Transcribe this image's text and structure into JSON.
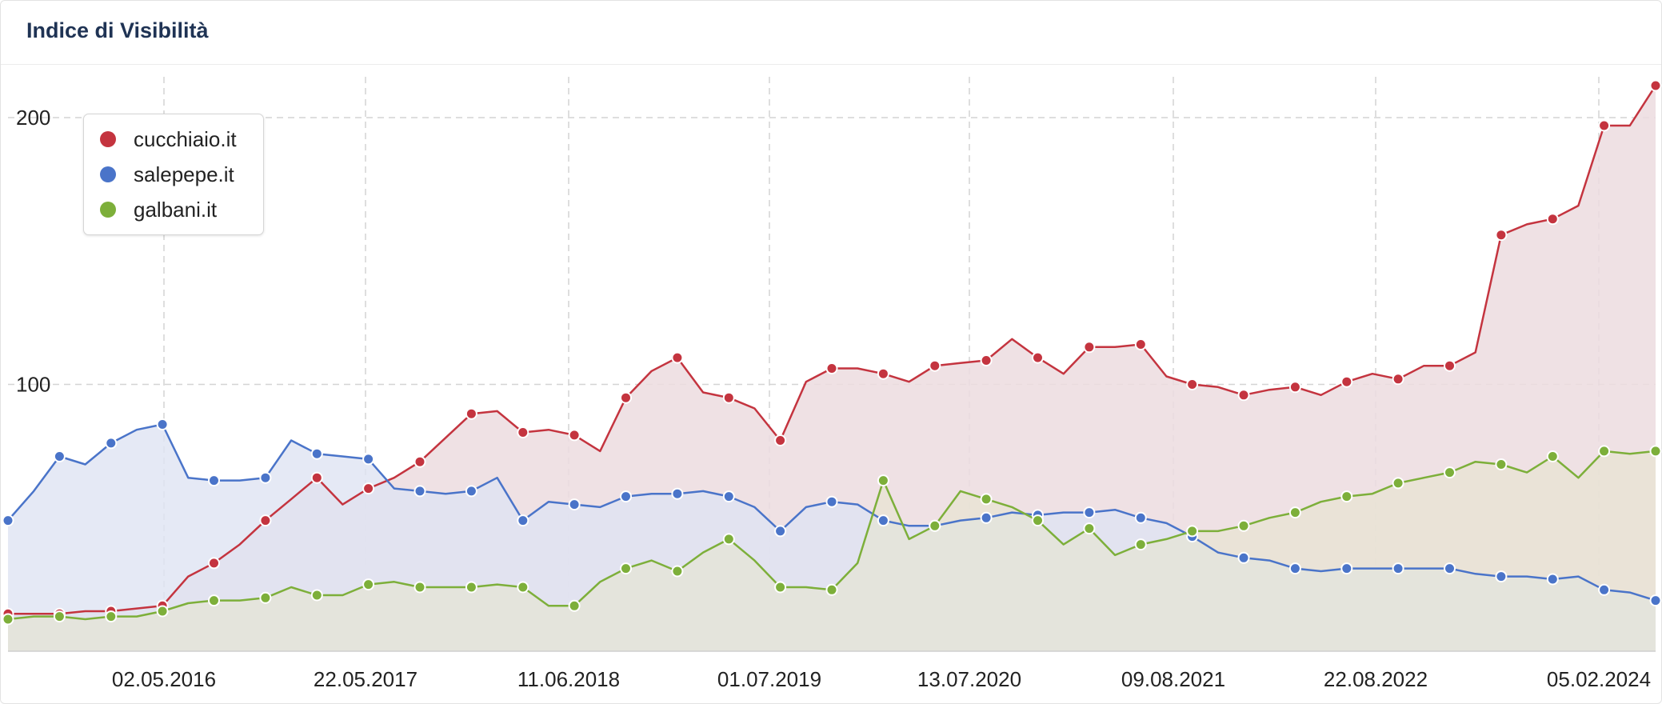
{
  "title": "Indice di Visibilità",
  "chart_data": {
    "type": "area",
    "title": "Indice di Visibilità",
    "xlabel": "",
    "ylabel": "",
    "x_tick_labels": [
      "02.05.2016",
      "22.05.2017",
      "11.06.2018",
      "01.07.2019",
      "13.07.2020",
      "09.08.2021",
      "22.08.2022",
      "05.02.2024"
    ],
    "y_tick_labels": [
      "100",
      "200"
    ],
    "y_ticks": [
      100,
      200
    ],
    "ylim": [
      0,
      215
    ],
    "grid": true,
    "legend_position": "top-left",
    "series": [
      {
        "name": "cucchiaio.it",
        "color": "#c4343f",
        "fill": "#ecdcdf",
        "values": [
          [
            0,
            14
          ],
          [
            1,
            14
          ],
          [
            2,
            14
          ],
          [
            3,
            15
          ],
          [
            4,
            15
          ],
          [
            5,
            16
          ],
          [
            6,
            17
          ],
          [
            7,
            28
          ],
          [
            8,
            33
          ],
          [
            9,
            40
          ],
          [
            10,
            49
          ],
          [
            11,
            57
          ],
          [
            12,
            65
          ],
          [
            13,
            55
          ],
          [
            14,
            61
          ],
          [
            15,
            65
          ],
          [
            16,
            71
          ],
          [
            17,
            80
          ],
          [
            18,
            89
          ],
          [
            19,
            90
          ],
          [
            20,
            82
          ],
          [
            21,
            83
          ],
          [
            22,
            81
          ],
          [
            23,
            75
          ],
          [
            24,
            95
          ],
          [
            25,
            105
          ],
          [
            26,
            110
          ],
          [
            27,
            97
          ],
          [
            28,
            95
          ],
          [
            29,
            91
          ],
          [
            30,
            79
          ],
          [
            31,
            101
          ],
          [
            32,
            106
          ],
          [
            33,
            106
          ],
          [
            34,
            104
          ],
          [
            35,
            101
          ],
          [
            36,
            107
          ],
          [
            37,
            108
          ],
          [
            38,
            109
          ],
          [
            39,
            117
          ],
          [
            40,
            110
          ],
          [
            41,
            104
          ],
          [
            42,
            114
          ],
          [
            43,
            114
          ],
          [
            44,
            115
          ],
          [
            45,
            103
          ],
          [
            46,
            100
          ],
          [
            47,
            99
          ],
          [
            48,
            96
          ],
          [
            49,
            98
          ],
          [
            50,
            99
          ],
          [
            51,
            96
          ],
          [
            52,
            101
          ],
          [
            53,
            104
          ],
          [
            54,
            102
          ],
          [
            55,
            107
          ],
          [
            56,
            107
          ],
          [
            57,
            112
          ],
          [
            58,
            156
          ],
          [
            59,
            160
          ],
          [
            60,
            162
          ],
          [
            61,
            167
          ],
          [
            62,
            197
          ],
          [
            63,
            197
          ],
          [
            64,
            212
          ]
        ]
      },
      {
        "name": "salepepe.it",
        "color": "#4a74c9",
        "fill": "#dfe3f3",
        "values": [
          [
            0,
            49
          ],
          [
            1,
            60
          ],
          [
            2,
            73
          ],
          [
            3,
            70
          ],
          [
            4,
            78
          ],
          [
            5,
            83
          ],
          [
            6,
            85
          ],
          [
            7,
            65
          ],
          [
            8,
            64
          ],
          [
            9,
            64
          ],
          [
            10,
            65
          ],
          [
            11,
            79
          ],
          [
            12,
            74
          ],
          [
            13,
            73
          ],
          [
            14,
            72
          ],
          [
            15,
            61
          ],
          [
            16,
            60
          ],
          [
            17,
            59
          ],
          [
            18,
            60
          ],
          [
            19,
            65
          ],
          [
            20,
            49
          ],
          [
            21,
            56
          ],
          [
            22,
            55
          ],
          [
            23,
            54
          ],
          [
            24,
            58
          ],
          [
            25,
            59
          ],
          [
            26,
            59
          ],
          [
            27,
            60
          ],
          [
            28,
            58
          ],
          [
            29,
            54
          ],
          [
            30,
            45
          ],
          [
            31,
            54
          ],
          [
            32,
            56
          ],
          [
            33,
            55
          ],
          [
            34,
            49
          ],
          [
            35,
            47
          ],
          [
            36,
            47
          ],
          [
            37,
            49
          ],
          [
            38,
            50
          ],
          [
            39,
            52
          ],
          [
            40,
            51
          ],
          [
            41,
            52
          ],
          [
            42,
            52
          ],
          [
            43,
            53
          ],
          [
            44,
            50
          ],
          [
            45,
            48
          ],
          [
            46,
            43
          ],
          [
            47,
            37
          ],
          [
            48,
            35
          ],
          [
            49,
            34
          ],
          [
            50,
            31
          ],
          [
            51,
            30
          ],
          [
            52,
            31
          ],
          [
            53,
            31
          ],
          [
            54,
            31
          ],
          [
            55,
            31
          ],
          [
            56,
            31
          ],
          [
            57,
            29
          ],
          [
            58,
            28
          ],
          [
            59,
            28
          ],
          [
            60,
            27
          ],
          [
            61,
            28
          ],
          [
            62,
            23
          ],
          [
            63,
            22
          ],
          [
            64,
            19
          ]
        ]
      },
      {
        "name": "galbani.it",
        "color": "#7daf3a",
        "fill": "#e6e5cf",
        "values": [
          [
            0,
            12
          ],
          [
            1,
            13
          ],
          [
            2,
            13
          ],
          [
            3,
            12
          ],
          [
            4,
            13
          ],
          [
            5,
            13
          ],
          [
            6,
            15
          ],
          [
            7,
            18
          ],
          [
            8,
            19
          ],
          [
            9,
            19
          ],
          [
            10,
            20
          ],
          [
            11,
            24
          ],
          [
            12,
            21
          ],
          [
            13,
            21
          ],
          [
            14,
            25
          ],
          [
            15,
            26
          ],
          [
            16,
            24
          ],
          [
            17,
            24
          ],
          [
            18,
            24
          ],
          [
            19,
            25
          ],
          [
            20,
            24
          ],
          [
            21,
            17
          ],
          [
            22,
            17
          ],
          [
            23,
            26
          ],
          [
            24,
            31
          ],
          [
            25,
            34
          ],
          [
            26,
            30
          ],
          [
            27,
            37
          ],
          [
            28,
            42
          ],
          [
            29,
            34
          ],
          [
            30,
            24
          ],
          [
            31,
            24
          ],
          [
            32,
            23
          ],
          [
            33,
            33
          ],
          [
            34,
            64
          ],
          [
            35,
            42
          ],
          [
            36,
            47
          ],
          [
            37,
            60
          ],
          [
            38,
            57
          ],
          [
            39,
            54
          ],
          [
            40,
            49
          ],
          [
            41,
            40
          ],
          [
            42,
            46
          ],
          [
            43,
            36
          ],
          [
            44,
            40
          ],
          [
            45,
            42
          ],
          [
            46,
            45
          ],
          [
            47,
            45
          ],
          [
            48,
            47
          ],
          [
            49,
            50
          ],
          [
            50,
            52
          ],
          [
            51,
            56
          ],
          [
            52,
            58
          ],
          [
            53,
            59
          ],
          [
            54,
            63
          ],
          [
            55,
            65
          ],
          [
            56,
            67
          ],
          [
            57,
            71
          ],
          [
            58,
            70
          ],
          [
            59,
            67
          ],
          [
            60,
            73
          ],
          [
            61,
            65
          ],
          [
            62,
            75
          ],
          [
            63,
            74
          ],
          [
            64,
            75
          ]
        ]
      }
    ]
  }
}
